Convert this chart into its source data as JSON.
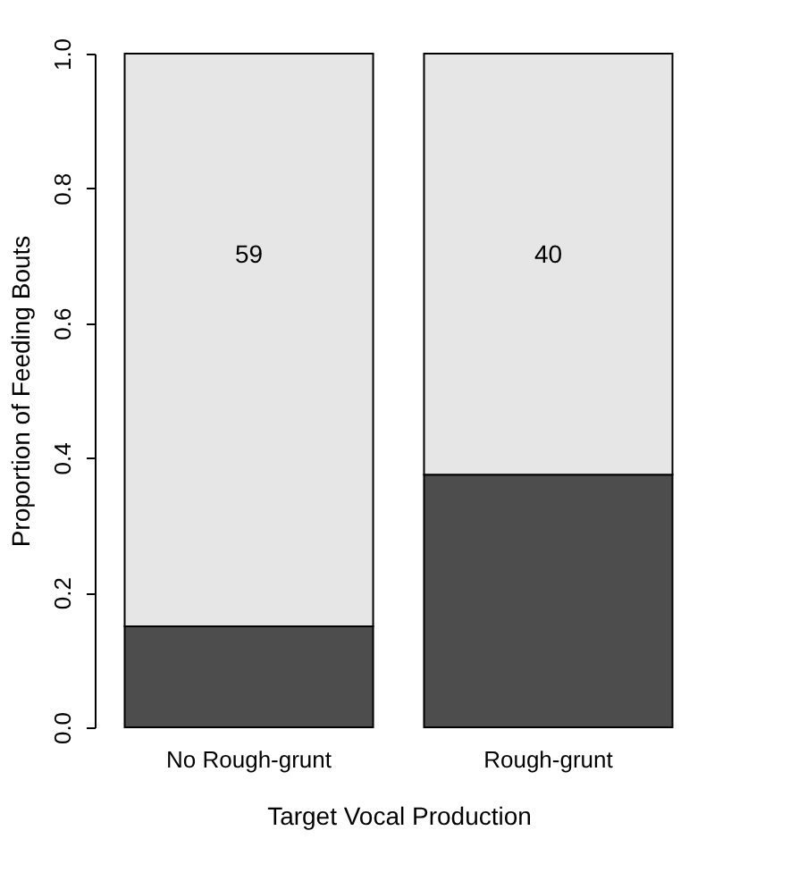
{
  "chart_data": {
    "type": "bar",
    "stacked": true,
    "xlabel": "Target Vocal Production",
    "ylabel": "Proportion of Feeding Bouts",
    "categories": [
      "No Rough-grunt",
      "Rough-grunt"
    ],
    "series": [
      {
        "color": "#4d4d4d",
        "values": [
          0.15,
          0.375
        ]
      },
      {
        "color": "#e6e6e6",
        "values": [
          0.85,
          0.625
        ]
      }
    ],
    "ylim": [
      0,
      1
    ],
    "yticks": [
      {
        "value": 0,
        "label": "0.0"
      },
      0.2,
      0.4,
      0.6,
      0.8,
      {
        "value": 1,
        "label": "1.0"
      }
    ],
    "annotations": [
      "59",
      "40"
    ],
    "grid": false,
    "legend": false
  }
}
